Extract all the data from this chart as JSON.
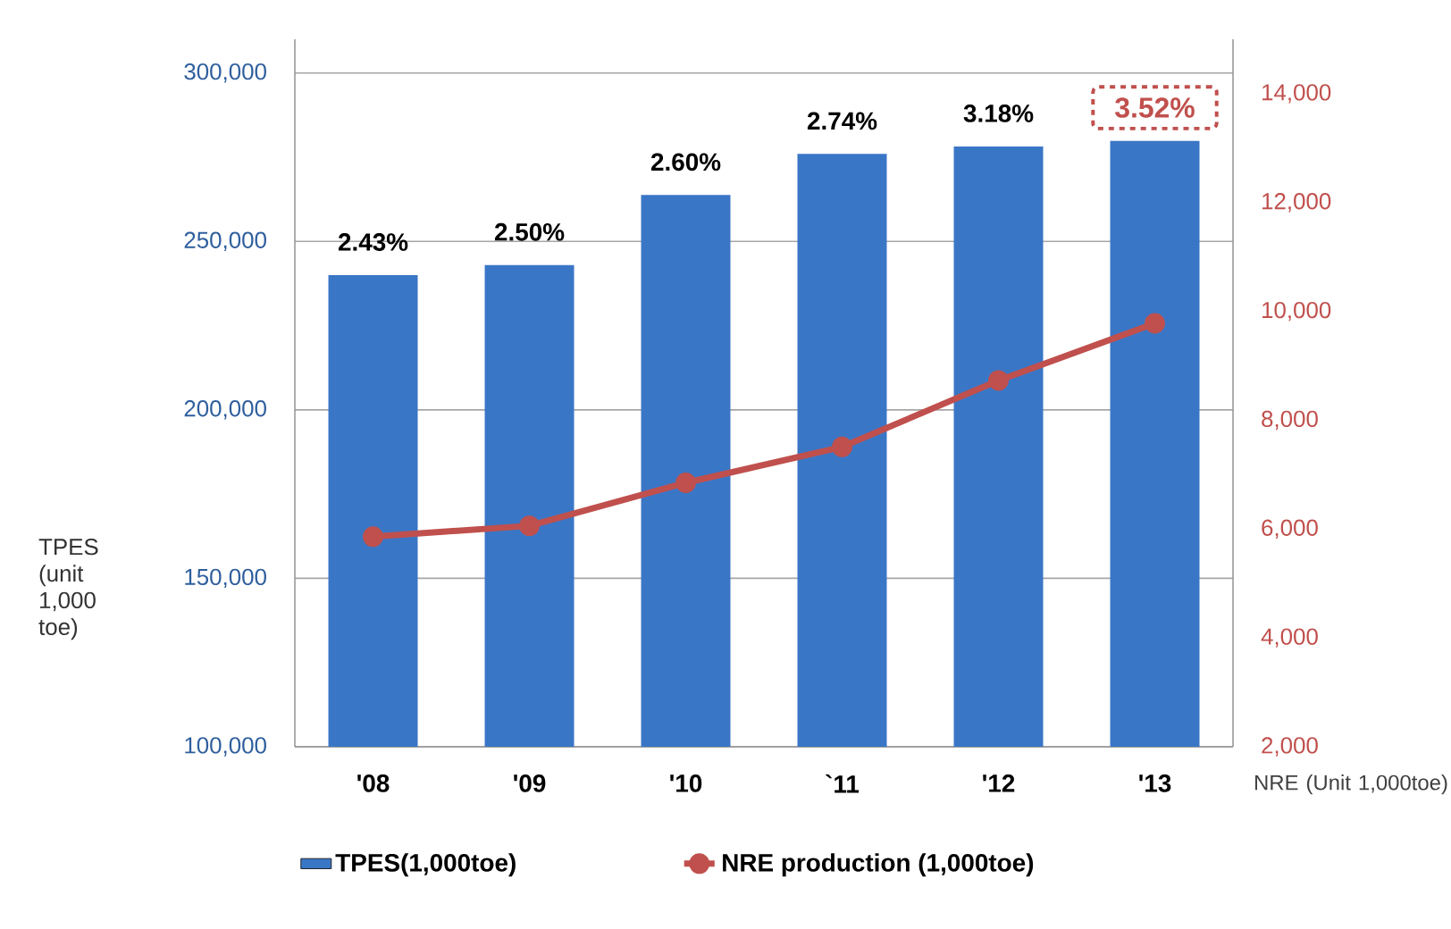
{
  "chart_data": {
    "type": "bar",
    "categories": [
      "'08",
      "'09",
      "'10",
      "`11",
      "'12",
      "'13"
    ],
    "series": [
      {
        "name": "TPES(1,000toe)",
        "color": "#3a76c6",
        "values": [
          240000,
          243000,
          263800,
          276000,
          278200,
          279800
        ]
      },
      {
        "name": "NRE production (1,000toe)",
        "type": "line",
        "axis": "y2",
        "color": "#c0504d",
        "values": [
          5860,
          6060,
          6850,
          7510,
          8730,
          9780
        ]
      }
    ],
    "annotations": [
      {
        "text": "2.43%",
        "x": "'08",
        "y": 240000
      },
      {
        "text": "2.50%",
        "x": "'09",
        "y": 243000
      },
      {
        "text": "2.60%",
        "x": "'10",
        "y": 263800
      },
      {
        "text": "2.74%",
        "x": "`11",
        "y": 276000
      },
      {
        "text": "3.18%",
        "x": "'12",
        "y": 278200
      },
      {
        "text": "3.52%",
        "x": "'13",
        "y": 279800
      }
    ],
    "ylabel": "TPES (unit 1,000 toe)",
    "y2label": "NRE (Unit 1,000toe)",
    "ylim": [
      100000,
      310000
    ],
    "yticks": [
      {
        "value": 100000,
        "label": "100,000"
      },
      {
        "value": 150000,
        "label": "150,000"
      },
      {
        "value": 200000,
        "label": "200,000"
      },
      {
        "value": 250000,
        "label": "250,000"
      },
      {
        "value": 300000,
        "label": "300,000"
      }
    ],
    "y2lim": [
      2000,
      15000
    ],
    "y2ticks": [
      {
        "value": 2000,
        "label": "2,000"
      },
      {
        "value": 4000,
        "label": "4,000"
      },
      {
        "value": 6000,
        "label": "6,000"
      },
      {
        "value": 8000,
        "label": "8,000"
      },
      {
        "value": 10000,
        "label": "10,000"
      },
      {
        "value": 12000,
        "label": "12,000"
      },
      {
        "value": 14000,
        "label": "14,000"
      }
    ],
    "grid": "y",
    "legend": "bottom",
    "marker": "circle"
  }
}
